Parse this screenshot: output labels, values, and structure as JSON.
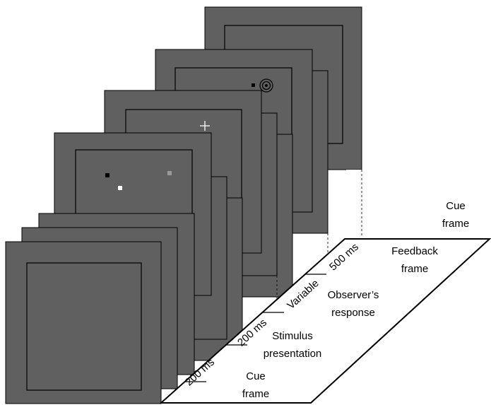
{
  "stages": [
    {
      "lines": [
        "Cue",
        "frame"
      ]
    },
    {
      "lines": [
        "Feedback",
        "frame"
      ]
    },
    {
      "lines": [
        "Observer’s",
        "response"
      ]
    },
    {
      "lines": [
        "Stimulus",
        "presentation"
      ]
    },
    {
      "lines": [
        "Cue",
        "frame"
      ]
    }
  ],
  "durations": [
    "500 ms",
    "Variable",
    "200 ms",
    "200 ms"
  ]
}
